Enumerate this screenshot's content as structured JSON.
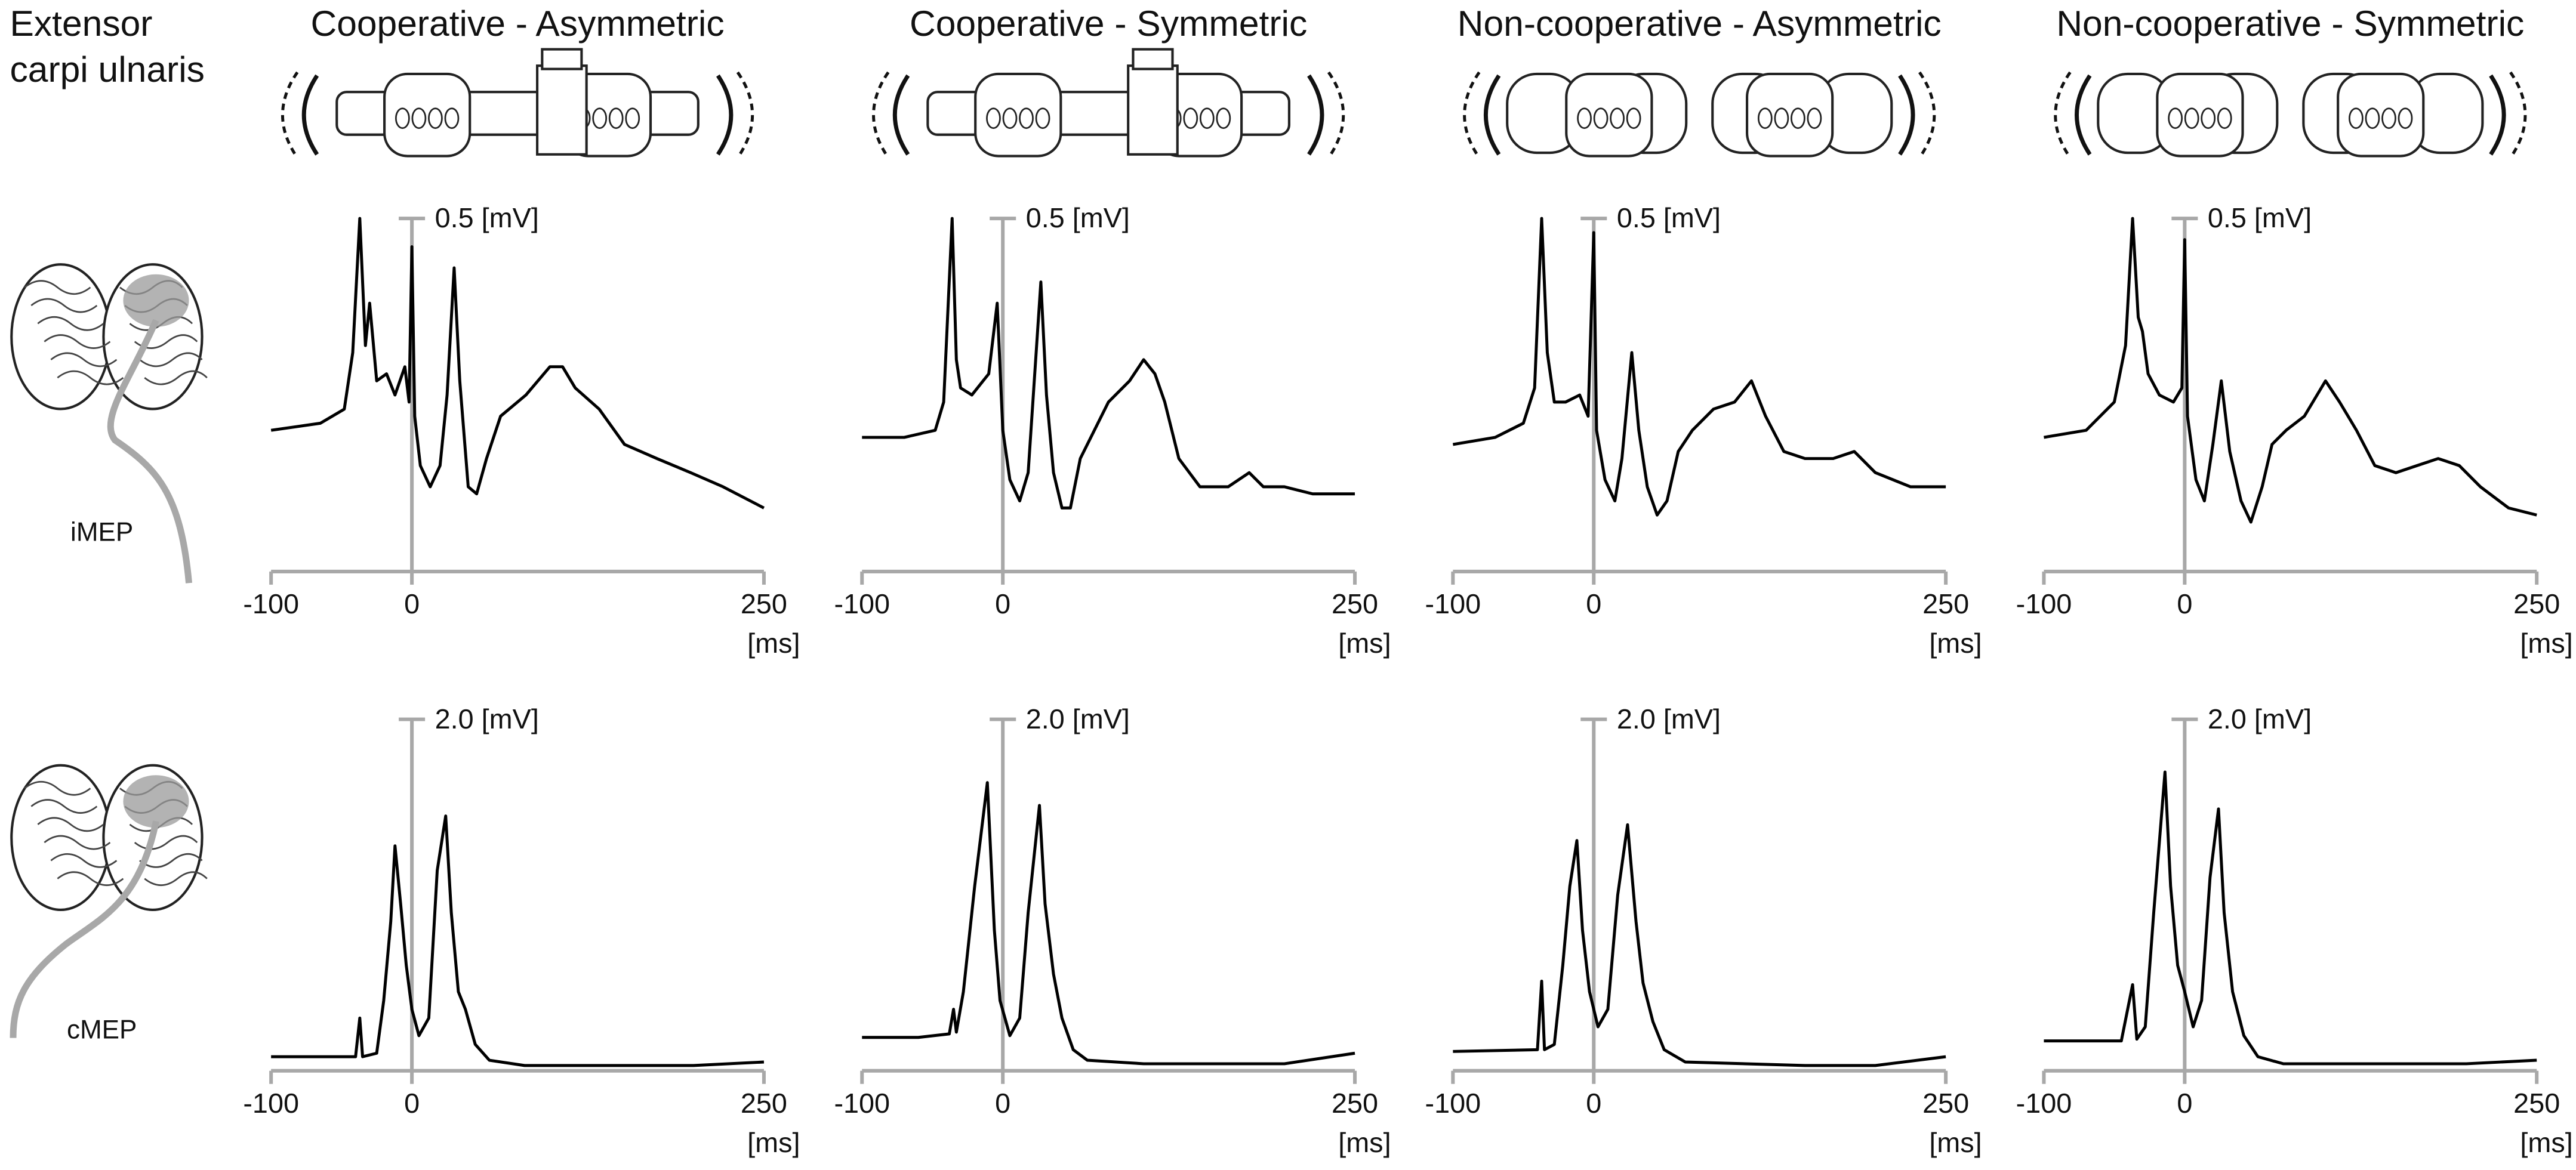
{
  "figure": {
    "muscle": [
      "Extensor",
      "carpi ulnaris"
    ],
    "rows": [
      "iMEP",
      "cMEP"
    ]
  },
  "chart_data": [
    {
      "type": "line",
      "title": "Cooperative - Asymmetric",
      "color": "#000000",
      "xlim": [
        -100,
        250
      ],
      "xticks": [
        -100,
        0,
        250
      ],
      "xlabel": "[ms]",
      "ylim": [
        0,
        0.5
      ],
      "yticks": [
        {
          "value": 0.5,
          "label": "0.5 [mV]"
        }
      ],
      "x": [
        -100,
        -65,
        -48,
        -42,
        -37,
        -33,
        -30,
        -25,
        -18,
        -12,
        -5,
        -2,
        0,
        2,
        6,
        13,
        20,
        25,
        30,
        34,
        40,
        46,
        53,
        63,
        81,
        98,
        107,
        116,
        133,
        151,
        174,
        198,
        221,
        250
      ],
      "values": [
        0.2,
        0.21,
        0.23,
        0.31,
        0.5,
        0.32,
        0.38,
        0.27,
        0.28,
        0.25,
        0.29,
        0.24,
        0.46,
        0.22,
        0.15,
        0.12,
        0.15,
        0.25,
        0.43,
        0.27,
        0.12,
        0.11,
        0.16,
        0.22,
        0.25,
        0.29,
        0.29,
        0.26,
        0.23,
        0.18,
        0.16,
        0.14,
        0.12,
        0.09
      ]
    },
    {
      "type": "line",
      "title": "Cooperative - Symmetric",
      "color": "#000000",
      "xlim": [
        -100,
        250
      ],
      "xticks": [
        -100,
        0,
        250
      ],
      "xlabel": "[ms]",
      "ylim": [
        0,
        0.5
      ],
      "yticks": [
        {
          "value": 0.5,
          "label": "0.5 [mV]"
        }
      ],
      "x": [
        -100,
        -70,
        -48,
        -42,
        -36,
        -33,
        -30,
        -22,
        -10,
        -4,
        0,
        5,
        12,
        18,
        22,
        27,
        31,
        36,
        42,
        48,
        55,
        65,
        75,
        90,
        100,
        108,
        115,
        125,
        140,
        160,
        175,
        185,
        200,
        220,
        250
      ],
      "values": [
        0.19,
        0.19,
        0.2,
        0.24,
        0.5,
        0.3,
        0.26,
        0.25,
        0.28,
        0.38,
        0.2,
        0.13,
        0.1,
        0.14,
        0.26,
        0.41,
        0.25,
        0.14,
        0.09,
        0.09,
        0.16,
        0.2,
        0.24,
        0.27,
        0.3,
        0.28,
        0.24,
        0.16,
        0.12,
        0.12,
        0.14,
        0.12,
        0.12,
        0.11,
        0.11
      ]
    },
    {
      "type": "line",
      "title": "Non-cooperative - Asymmetric",
      "color": "#000000",
      "xlim": [
        -100,
        250
      ],
      "xticks": [
        -100,
        0,
        250
      ],
      "xlabel": "[ms]",
      "ylim": [
        0,
        0.5
      ],
      "yticks": [
        {
          "value": 0.5,
          "label": "0.5 [mV]"
        }
      ],
      "x": [
        -100,
        -70,
        -50,
        -42,
        -37,
        -33,
        -28,
        -20,
        -10,
        -4,
        0,
        2,
        8,
        15,
        20,
        27,
        32,
        38,
        45,
        52,
        60,
        70,
        85,
        100,
        112,
        122,
        135,
        150,
        170,
        185,
        200,
        225,
        250
      ],
      "values": [
        0.18,
        0.19,
        0.21,
        0.26,
        0.5,
        0.31,
        0.24,
        0.24,
        0.25,
        0.22,
        0.48,
        0.2,
        0.13,
        0.1,
        0.16,
        0.31,
        0.2,
        0.12,
        0.08,
        0.1,
        0.17,
        0.2,
        0.23,
        0.24,
        0.27,
        0.22,
        0.17,
        0.16,
        0.16,
        0.17,
        0.14,
        0.12,
        0.12
      ]
    },
    {
      "type": "line",
      "title": "Non-cooperative - Symmetric",
      "color": "#000000",
      "xlim": [
        -100,
        250
      ],
      "xticks": [
        -100,
        0,
        250
      ],
      "xlabel": "[ms]",
      "ylim": [
        0,
        0.5
      ],
      "yticks": [
        {
          "value": 0.5,
          "label": "0.5 [mV]"
        }
      ],
      "x": [
        -100,
        -70,
        -50,
        -42,
        -37,
        -33,
        -30,
        -26,
        -18,
        -8,
        -2,
        0,
        2,
        8,
        14,
        20,
        26,
        32,
        40,
        47,
        55,
        62,
        72,
        85,
        100,
        110,
        122,
        135,
        150,
        165,
        180,
        195,
        210,
        230,
        250
      ],
      "values": [
        0.19,
        0.2,
        0.24,
        0.32,
        0.5,
        0.36,
        0.34,
        0.28,
        0.25,
        0.24,
        0.26,
        0.47,
        0.22,
        0.13,
        0.1,
        0.18,
        0.27,
        0.17,
        0.1,
        0.07,
        0.12,
        0.18,
        0.2,
        0.22,
        0.27,
        0.24,
        0.2,
        0.15,
        0.14,
        0.15,
        0.16,
        0.15,
        0.12,
        0.09,
        0.08
      ]
    },
    {
      "type": "line",
      "color": "#000000",
      "xlim": [
        -100,
        250
      ],
      "xticks": [
        -100,
        0,
        250
      ],
      "xlabel": "[ms]",
      "ylim": [
        0,
        2.0
      ],
      "yticks": [
        {
          "value": 2.0,
          "label": "2.0 [mV]"
        }
      ],
      "x": [
        -100,
        -40,
        -37,
        -35,
        -25,
        -20,
        -15,
        -12,
        -8,
        -4,
        0,
        5,
        12,
        18,
        24,
        28,
        33,
        38,
        45,
        55,
        80,
        150,
        200,
        250
      ],
      "values": [
        0.08,
        0.08,
        0.3,
        0.08,
        0.1,
        0.4,
        0.85,
        1.28,
        0.95,
        0.6,
        0.35,
        0.2,
        0.3,
        1.14,
        1.45,
        0.9,
        0.45,
        0.35,
        0.15,
        0.06,
        0.03,
        0.03,
        0.03,
        0.05
      ]
    },
    {
      "type": "line",
      "color": "#000000",
      "xlim": [
        -100,
        250
      ],
      "xticks": [
        -100,
        0,
        250
      ],
      "xlabel": "[ms]",
      "ylim": [
        0,
        2.0
      ],
      "yticks": [
        {
          "value": 2.0,
          "label": "2.0 [mV]"
        }
      ],
      "x": [
        -100,
        -60,
        -38,
        -35,
        -33,
        -28,
        -20,
        -11,
        -6,
        -2,
        5,
        12,
        18,
        26,
        30,
        36,
        42,
        50,
        60,
        100,
        150,
        200,
        250
      ],
      "values": [
        0.19,
        0.19,
        0.21,
        0.35,
        0.22,
        0.45,
        1.05,
        1.64,
        0.8,
        0.4,
        0.2,
        0.3,
        0.9,
        1.51,
        0.95,
        0.55,
        0.3,
        0.12,
        0.06,
        0.04,
        0.04,
        0.04,
        0.1
      ]
    },
    {
      "type": "line",
      "color": "#000000",
      "xlim": [
        -100,
        250
      ],
      "xticks": [
        -100,
        0,
        250
      ],
      "xlabel": "[ms]",
      "ylim": [
        0,
        2.0
      ],
      "yticks": [
        {
          "value": 2.0,
          "label": "2.0 [mV]"
        }
      ],
      "x": [
        -100,
        -40,
        -37,
        -35,
        -28,
        -22,
        -17,
        -12,
        -8,
        -3,
        3,
        10,
        17,
        24,
        30,
        35,
        42,
        50,
        65,
        150,
        200,
        250
      ],
      "values": [
        0.11,
        0.12,
        0.51,
        0.12,
        0.15,
        0.6,
        1.05,
        1.31,
        0.8,
        0.45,
        0.25,
        0.35,
        1.0,
        1.4,
        0.85,
        0.5,
        0.28,
        0.12,
        0.05,
        0.03,
        0.03,
        0.08
      ]
    },
    {
      "type": "line",
      "color": "#000000",
      "xlim": [
        -100,
        250
      ],
      "xticks": [
        -100,
        0,
        250
      ],
      "xlabel": "[ms]",
      "ylim": [
        0,
        2.0
      ],
      "yticks": [
        {
          "value": 2.0,
          "label": "2.0 [mV]"
        }
      ],
      "x": [
        -100,
        -45,
        -37,
        -34,
        -28,
        -22,
        -14,
        -10,
        -5,
        0,
        6,
        12,
        18,
        24,
        28,
        34,
        42,
        52,
        70,
        150,
        200,
        250
      ],
      "values": [
        0.17,
        0.17,
        0.49,
        0.18,
        0.25,
        0.9,
        1.7,
        1.05,
        0.6,
        0.45,
        0.25,
        0.4,
        1.1,
        1.49,
        0.9,
        0.45,
        0.2,
        0.08,
        0.04,
        0.04,
        0.04,
        0.06
      ]
    }
  ]
}
